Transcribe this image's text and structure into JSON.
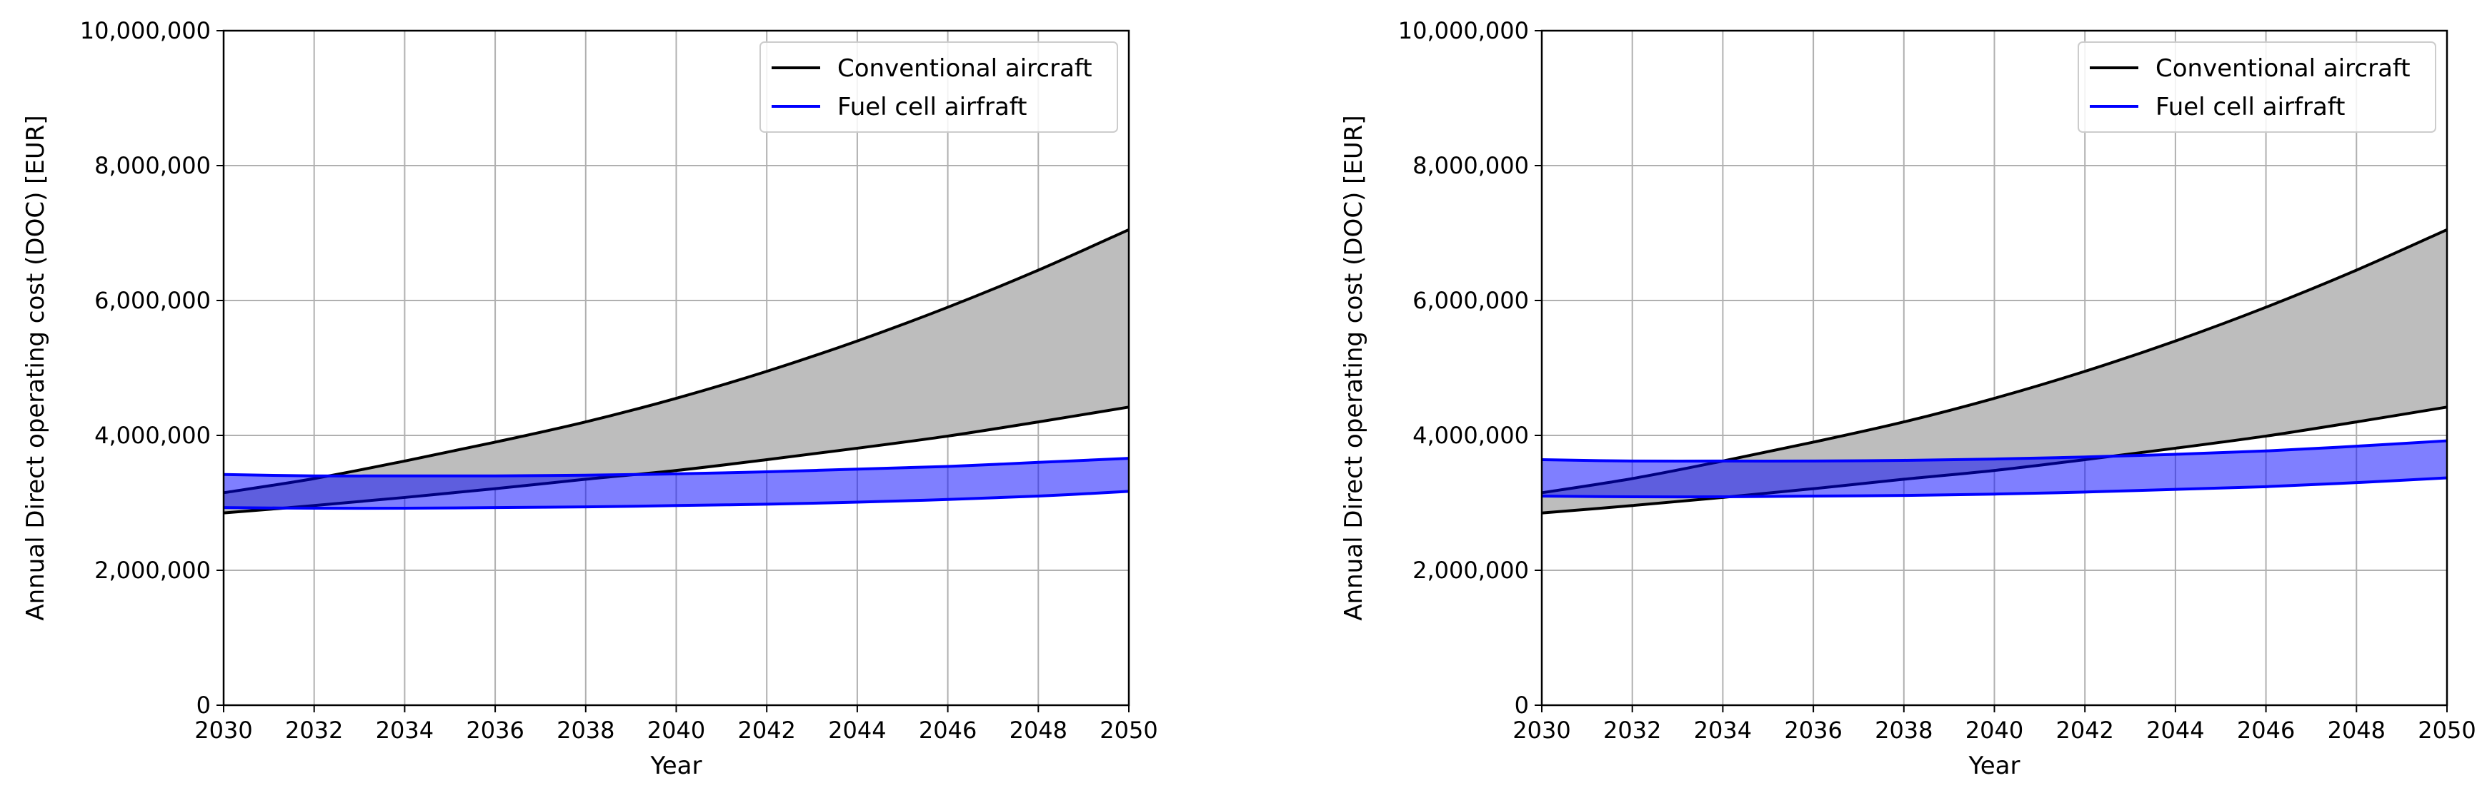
{
  "chart_data": [
    {
      "type": "area",
      "xlabel": "Year",
      "ylabel": "Annual Direct operating cost (DOC) [EUR]",
      "xlim": [
        2030,
        2050
      ],
      "ylim": [
        0,
        10000000
      ],
      "xticks": [
        2030,
        2032,
        2034,
        2036,
        2038,
        2040,
        2042,
        2044,
        2046,
        2048,
        2050
      ],
      "xtick_labels": [
        "2030",
        "2032",
        "2034",
        "2036",
        "2038",
        "2040",
        "2042",
        "2044",
        "2046",
        "2048",
        "2050"
      ],
      "yticks": [
        0,
        2000000,
        4000000,
        6000000,
        8000000,
        10000000
      ],
      "ytick_labels": [
        "0",
        "2,000,000",
        "4,000,000",
        "6,000,000",
        "8,000,000",
        "10,000,000"
      ],
      "grid": true,
      "legend_position": "top-right",
      "legend": [
        "Conventional aircraft",
        "Fuel cell airfraft"
      ],
      "series": [
        {
          "name": "Conventional aircraft",
          "color": "#000000",
          "fill": "#bdbdbd",
          "x": [
            2030,
            2032,
            2034,
            2036,
            2038,
            2040,
            2042,
            2044,
            2046,
            2048,
            2050
          ],
          "lower": [
            2850000,
            2960000,
            3080000,
            3210000,
            3350000,
            3480000,
            3640000,
            3810000,
            3990000,
            4200000,
            4420000
          ],
          "upper": [
            3150000,
            3360000,
            3620000,
            3900000,
            4200000,
            4550000,
            4950000,
            5400000,
            5900000,
            6450000,
            7050000
          ]
        },
        {
          "name": "Fuel cell airfraft",
          "color": "#0000ff",
          "fill": "rgba(0,0,255,0.5)",
          "x": [
            2030,
            2032,
            2034,
            2036,
            2038,
            2040,
            2042,
            2044,
            2046,
            2048,
            2050
          ],
          "lower": [
            2930000,
            2920000,
            2920000,
            2930000,
            2940000,
            2960000,
            2980000,
            3010000,
            3050000,
            3100000,
            3170000
          ],
          "upper": [
            3420000,
            3400000,
            3400000,
            3400000,
            3410000,
            3430000,
            3460000,
            3500000,
            3540000,
            3600000,
            3660000
          ]
        }
      ]
    },
    {
      "type": "area",
      "xlabel": "Year",
      "ylabel": "Annual Direct operating cost (DOC) [EUR]",
      "xlim": [
        2030,
        2050
      ],
      "ylim": [
        0,
        10000000
      ],
      "xticks": [
        2030,
        2032,
        2034,
        2036,
        2038,
        2040,
        2042,
        2044,
        2046,
        2048,
        2050
      ],
      "xtick_labels": [
        "2030",
        "2032",
        "2034",
        "2036",
        "2038",
        "2040",
        "2042",
        "2044",
        "2046",
        "2048",
        "2050"
      ],
      "yticks": [
        0,
        2000000,
        4000000,
        6000000,
        8000000,
        10000000
      ],
      "ytick_labels": [
        "0",
        "2,000,000",
        "4,000,000",
        "6,000,000",
        "8,000,000",
        "10,000,000"
      ],
      "grid": true,
      "legend_position": "top-right",
      "legend": [
        "Conventional aircraft",
        "Fuel cell airfraft"
      ],
      "series": [
        {
          "name": "Conventional aircraft",
          "color": "#000000",
          "fill": "#bdbdbd",
          "x": [
            2030,
            2032,
            2034,
            2036,
            2038,
            2040,
            2042,
            2044,
            2046,
            2048,
            2050
          ],
          "lower": [
            2850000,
            2960000,
            3080000,
            3210000,
            3350000,
            3480000,
            3640000,
            3810000,
            3990000,
            4200000,
            4420000
          ],
          "upper": [
            3150000,
            3360000,
            3620000,
            3900000,
            4200000,
            4550000,
            4950000,
            5400000,
            5900000,
            6450000,
            7050000
          ]
        },
        {
          "name": "Fuel cell airfraft",
          "color": "#0000ff",
          "fill": "rgba(0,0,255,0.5)",
          "x": [
            2030,
            2032,
            2034,
            2036,
            2038,
            2040,
            2042,
            2044,
            2046,
            2048,
            2050
          ],
          "lower": [
            3100000,
            3090000,
            3090000,
            3100000,
            3110000,
            3130000,
            3160000,
            3200000,
            3240000,
            3300000,
            3370000
          ],
          "upper": [
            3640000,
            3620000,
            3620000,
            3620000,
            3630000,
            3650000,
            3680000,
            3720000,
            3770000,
            3840000,
            3920000
          ]
        }
      ]
    }
  ]
}
